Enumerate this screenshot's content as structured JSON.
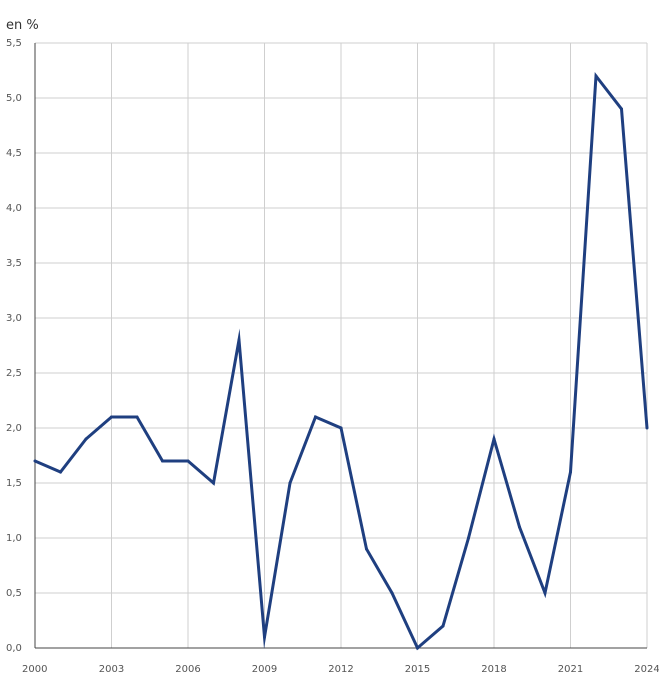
{
  "chart_data": {
    "type": "line",
    "unit_label": "en %",
    "x": [
      2000,
      2001,
      2002,
      2003,
      2004,
      2005,
      2006,
      2007,
      2008,
      2009,
      2010,
      2011,
      2012,
      2013,
      2014,
      2015,
      2016,
      2017,
      2018,
      2019,
      2020,
      2021,
      2022,
      2023,
      2024
    ],
    "series": [
      {
        "values": [
          1.7,
          1.6,
          1.9,
          2.1,
          2.1,
          1.7,
          1.7,
          1.5,
          2.8,
          0.1,
          1.5,
          2.1,
          2.0,
          0.9,
          0.5,
          0.0,
          0.2,
          1.0,
          1.9,
          1.1,
          0.5,
          1.6,
          5.2,
          4.9,
          2.0
        ],
        "color": "#1f3f80"
      }
    ],
    "xlim": [
      2000,
      2024
    ],
    "ylim": [
      0,
      5.5
    ],
    "x_ticks": [
      2000,
      2003,
      2006,
      2009,
      2012,
      2015,
      2018,
      2021,
      2024
    ],
    "x_tick_labels": [
      "2000",
      "2003",
      "2006",
      "2009",
      "2012",
      "2015",
      "2018",
      "2021",
      "2024"
    ],
    "y_ticks": [
      0,
      0.5,
      1.0,
      1.5,
      2.0,
      2.5,
      3.0,
      3.5,
      4.0,
      4.5,
      5.0,
      5.5
    ],
    "y_tick_labels": [
      "0,0",
      "0,5",
      "1,0",
      "1,5",
      "2,0",
      "2,5",
      "3,0",
      "3,5",
      "4,0",
      "4,5",
      "5,0",
      "5,5"
    ],
    "grid": true,
    "legend": "none"
  }
}
